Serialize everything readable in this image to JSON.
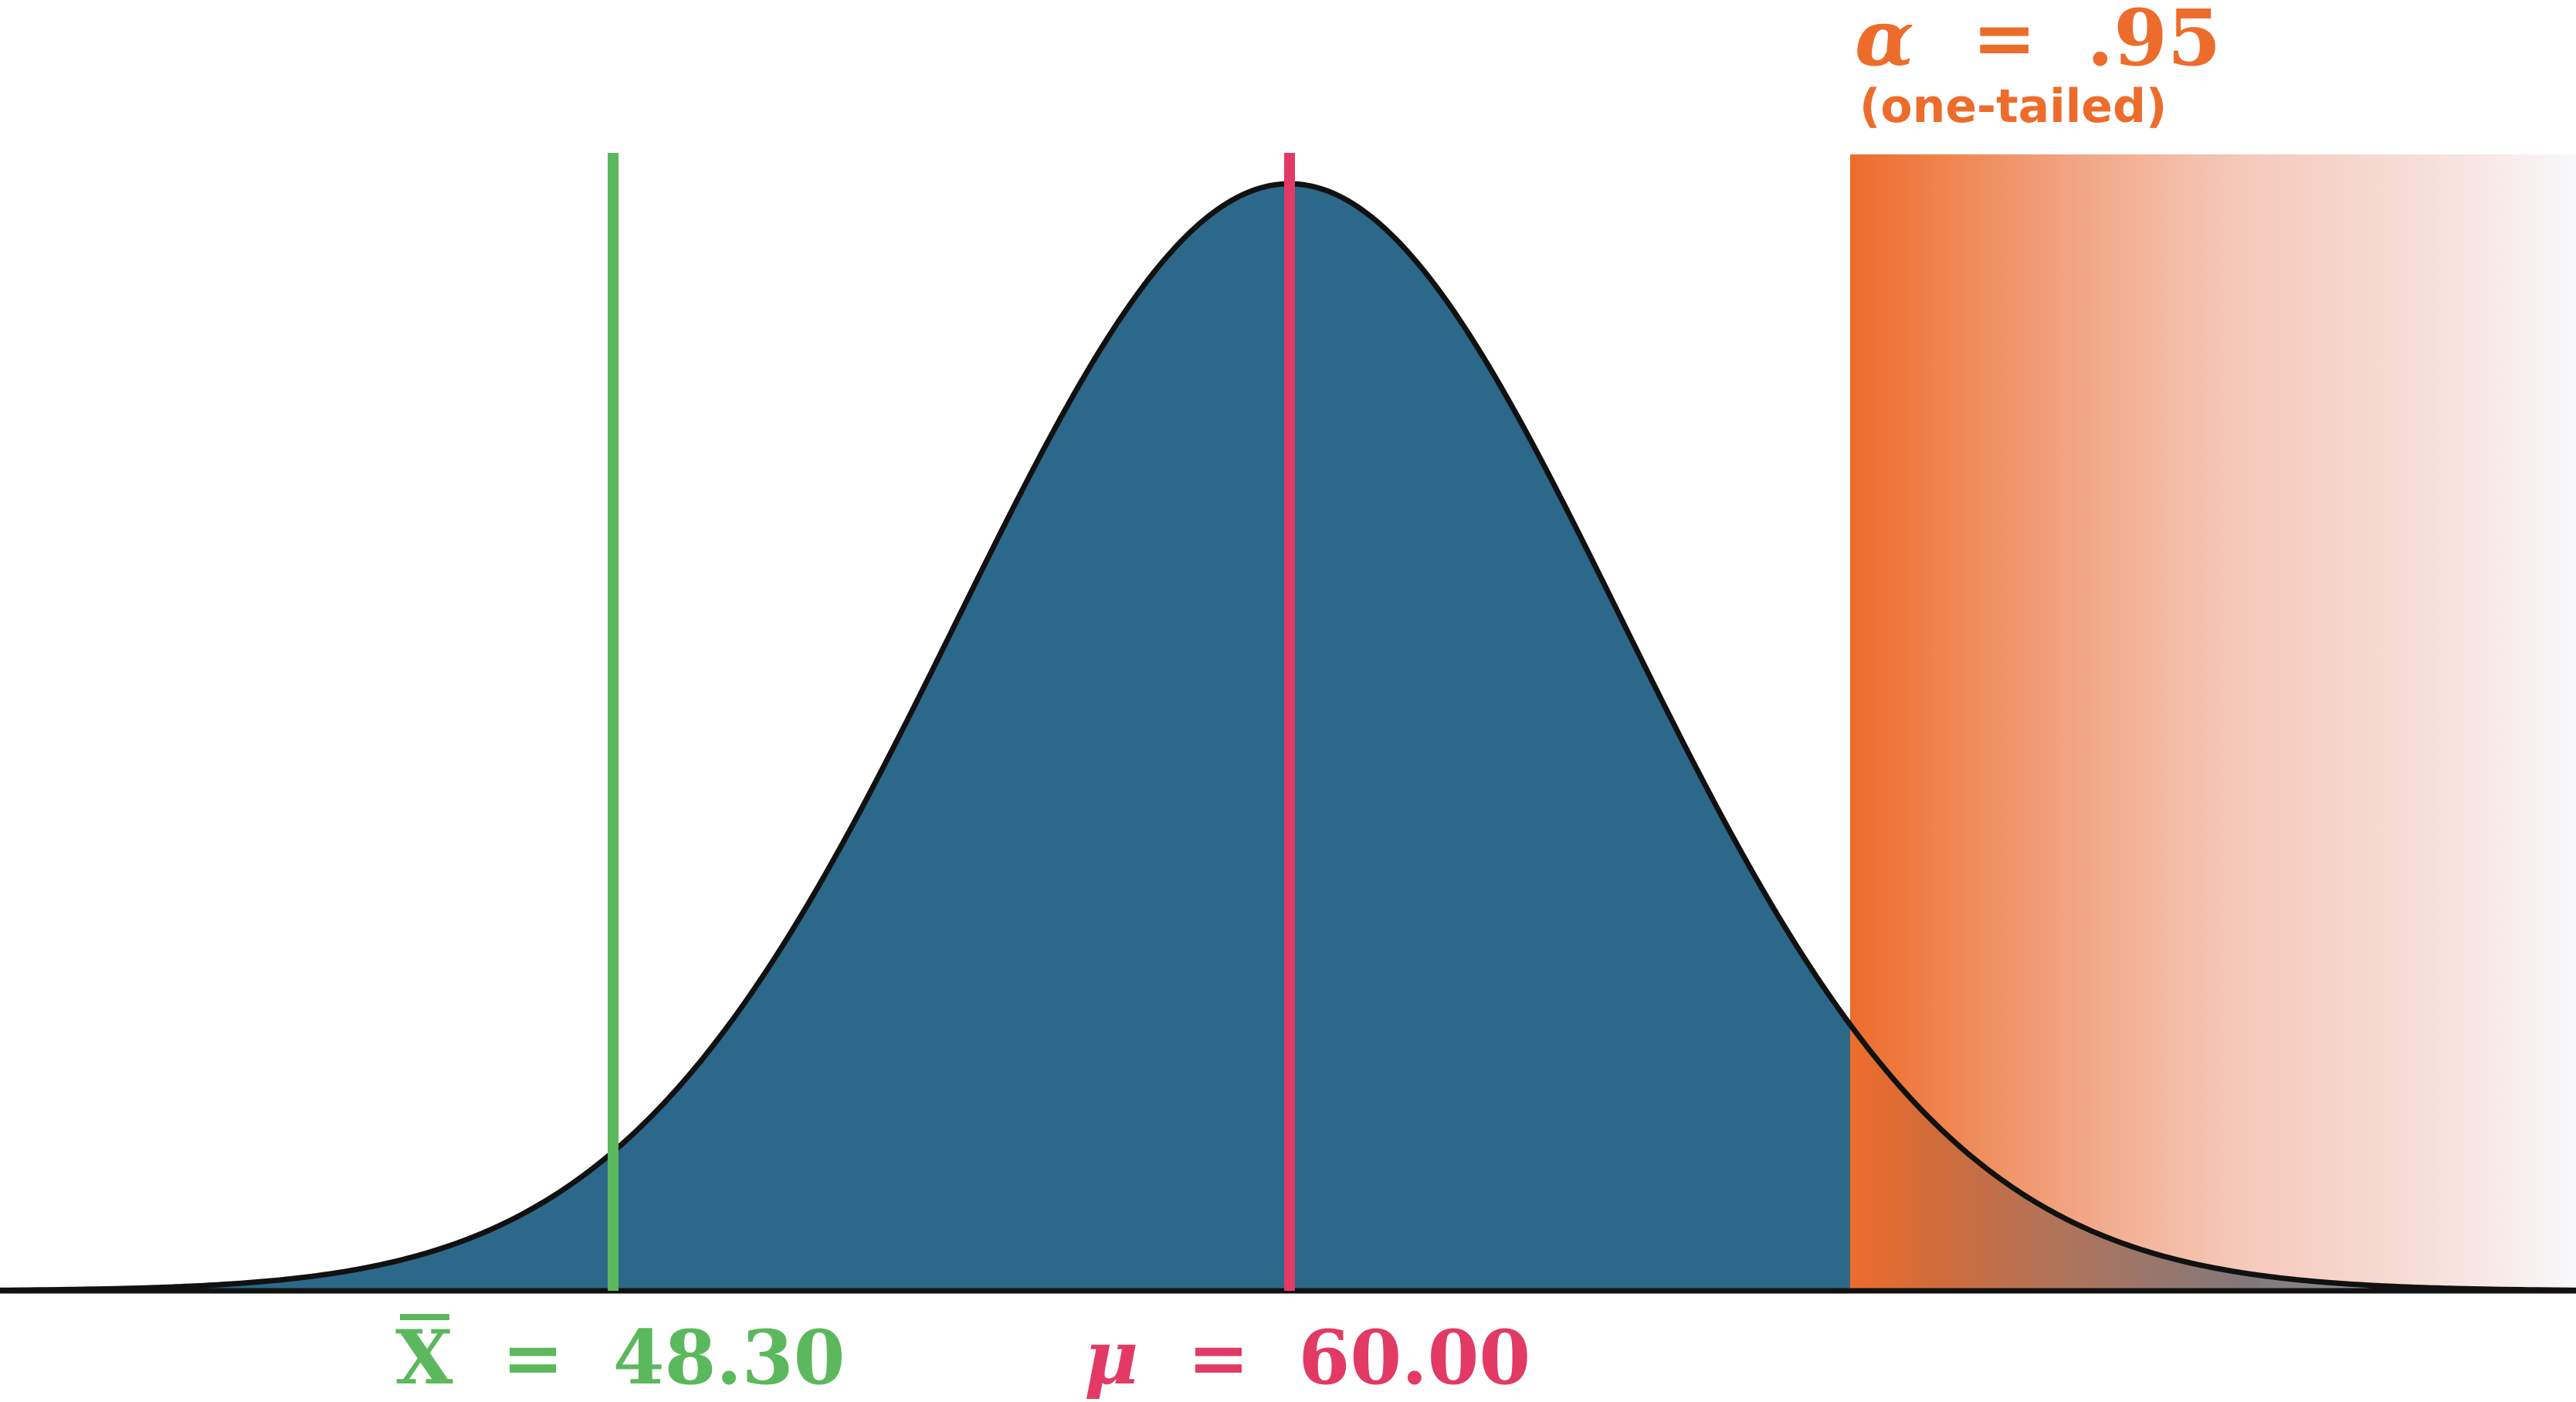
{
  "colors": {
    "curve_fill": "#2c6889",
    "curve_stroke": "#111111",
    "sample_mean": "#5cb85c",
    "population_mean": "#e23a64",
    "alpha_region": "#ed6c2c"
  },
  "labels": {
    "sample_mean": {
      "symbol": "X",
      "equals": "=",
      "value": "48.30"
    },
    "population_mean": {
      "symbol": "μ",
      "equals": "=",
      "value": "60.00"
    },
    "alpha": {
      "symbol": "α",
      "equals": "=",
      "value": ".95",
      "note": "(one-tailed)"
    }
  }
}
